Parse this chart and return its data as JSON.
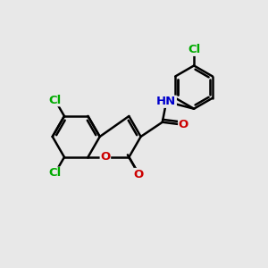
{
  "bg_color": "#e8e8e8",
  "bond_color": "#000000",
  "bond_width": 1.8,
  "atom_colors": {
    "Cl": "#00aa00",
    "N": "#0000cc",
    "O": "#cc0000",
    "H": "#555555"
  },
  "font_size": 9.5
}
